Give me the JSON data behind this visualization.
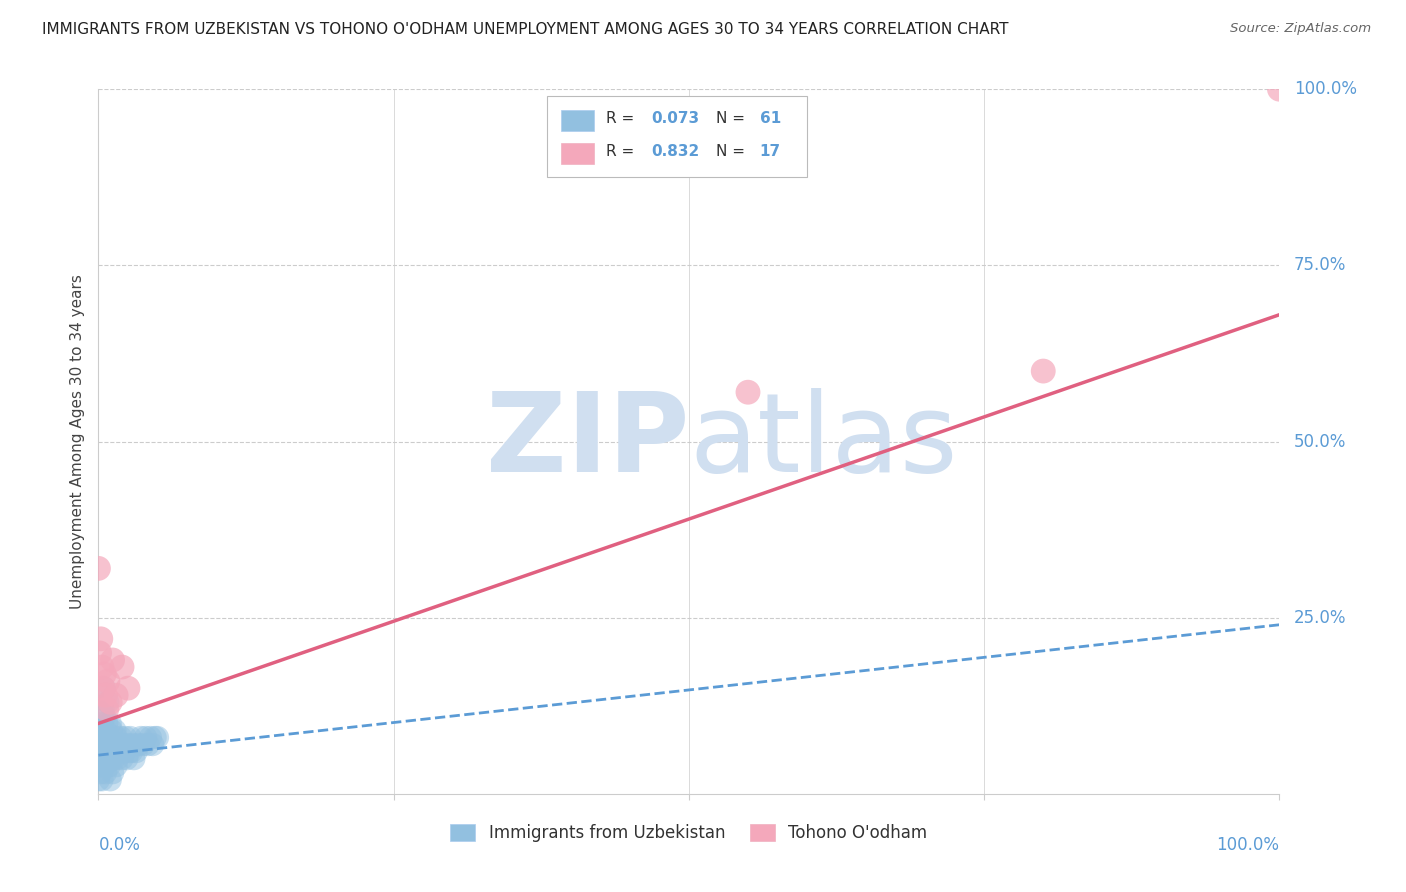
{
  "title": "IMMIGRANTS FROM UZBEKISTAN VS TOHONO O'ODHAM UNEMPLOYMENT AMONG AGES 30 TO 34 YEARS CORRELATION CHART",
  "source": "Source: ZipAtlas.com",
  "ylabel": "Unemployment Among Ages 30 to 34 years",
  "ytick_labels": [
    "100.0%",
    "75.0%",
    "50.0%",
    "25.0%"
  ],
  "ytick_values": [
    1.0,
    0.75,
    0.5,
    0.25
  ],
  "legend_blue_label": "Immigrants from Uzbekistan",
  "legend_pink_label": "Tohono O'odham",
  "blue_color": "#92c0e0",
  "pink_color": "#f4a8bb",
  "blue_line_color": "#5b9bd5",
  "pink_line_color": "#e06080",
  "watermark_top": "ZIP",
  "watermark_bot": "atlas",
  "watermark_color": "#d0dff0",
  "blue_scatter_x": [
    0.0,
    0.0,
    0.001,
    0.001,
    0.002,
    0.002,
    0.003,
    0.003,
    0.003,
    0.004,
    0.004,
    0.004,
    0.005,
    0.005,
    0.005,
    0.005,
    0.006,
    0.006,
    0.007,
    0.007,
    0.008,
    0.008,
    0.009,
    0.009,
    0.01,
    0.01,
    0.01,
    0.011,
    0.011,
    0.012,
    0.012,
    0.013,
    0.014,
    0.014,
    0.015,
    0.015,
    0.016,
    0.017,
    0.018,
    0.019,
    0.02,
    0.021,
    0.022,
    0.023,
    0.024,
    0.025,
    0.026,
    0.027,
    0.028,
    0.029,
    0.03,
    0.032,
    0.034,
    0.036,
    0.038,
    0.04,
    0.042,
    0.044,
    0.046,
    0.048,
    0.05
  ],
  "blue_scatter_y": [
    0.05,
    0.02,
    0.04,
    0.08,
    0.03,
    0.07,
    0.06,
    0.1,
    0.02,
    0.05,
    0.08,
    0.12,
    0.04,
    0.07,
    0.11,
    0.15,
    0.03,
    0.09,
    0.05,
    0.1,
    0.06,
    0.13,
    0.04,
    0.08,
    0.02,
    0.06,
    0.1,
    0.05,
    0.09,
    0.03,
    0.07,
    0.05,
    0.06,
    0.09,
    0.04,
    0.08,
    0.05,
    0.07,
    0.06,
    0.08,
    0.05,
    0.07,
    0.06,
    0.08,
    0.05,
    0.07,
    0.06,
    0.08,
    0.06,
    0.07,
    0.05,
    0.06,
    0.07,
    0.08,
    0.07,
    0.08,
    0.07,
    0.08,
    0.07,
    0.08,
    0.08
  ],
  "pink_scatter_x": [
    0.0,
    0.001,
    0.002,
    0.003,
    0.004,
    0.005,
    0.006,
    0.007,
    0.008,
    0.01,
    0.012,
    0.015,
    0.02,
    0.025,
    0.55,
    0.8,
    1.0
  ],
  "pink_scatter_y": [
    0.32,
    0.2,
    0.22,
    0.18,
    0.15,
    0.17,
    0.14,
    0.12,
    0.16,
    0.13,
    0.19,
    0.14,
    0.18,
    0.15,
    0.57,
    0.6,
    1.0
  ],
  "blue_trend_x": [
    0.0,
    1.0
  ],
  "blue_trend_y": [
    0.055,
    0.24
  ],
  "pink_trend_x": [
    0.0,
    1.0
  ],
  "pink_trend_y": [
    0.1,
    0.68
  ],
  "xlim": [
    0.0,
    1.0
  ],
  "ylim": [
    0.0,
    1.0
  ],
  "bg_color": "#ffffff",
  "grid_color": "#cccccc"
}
